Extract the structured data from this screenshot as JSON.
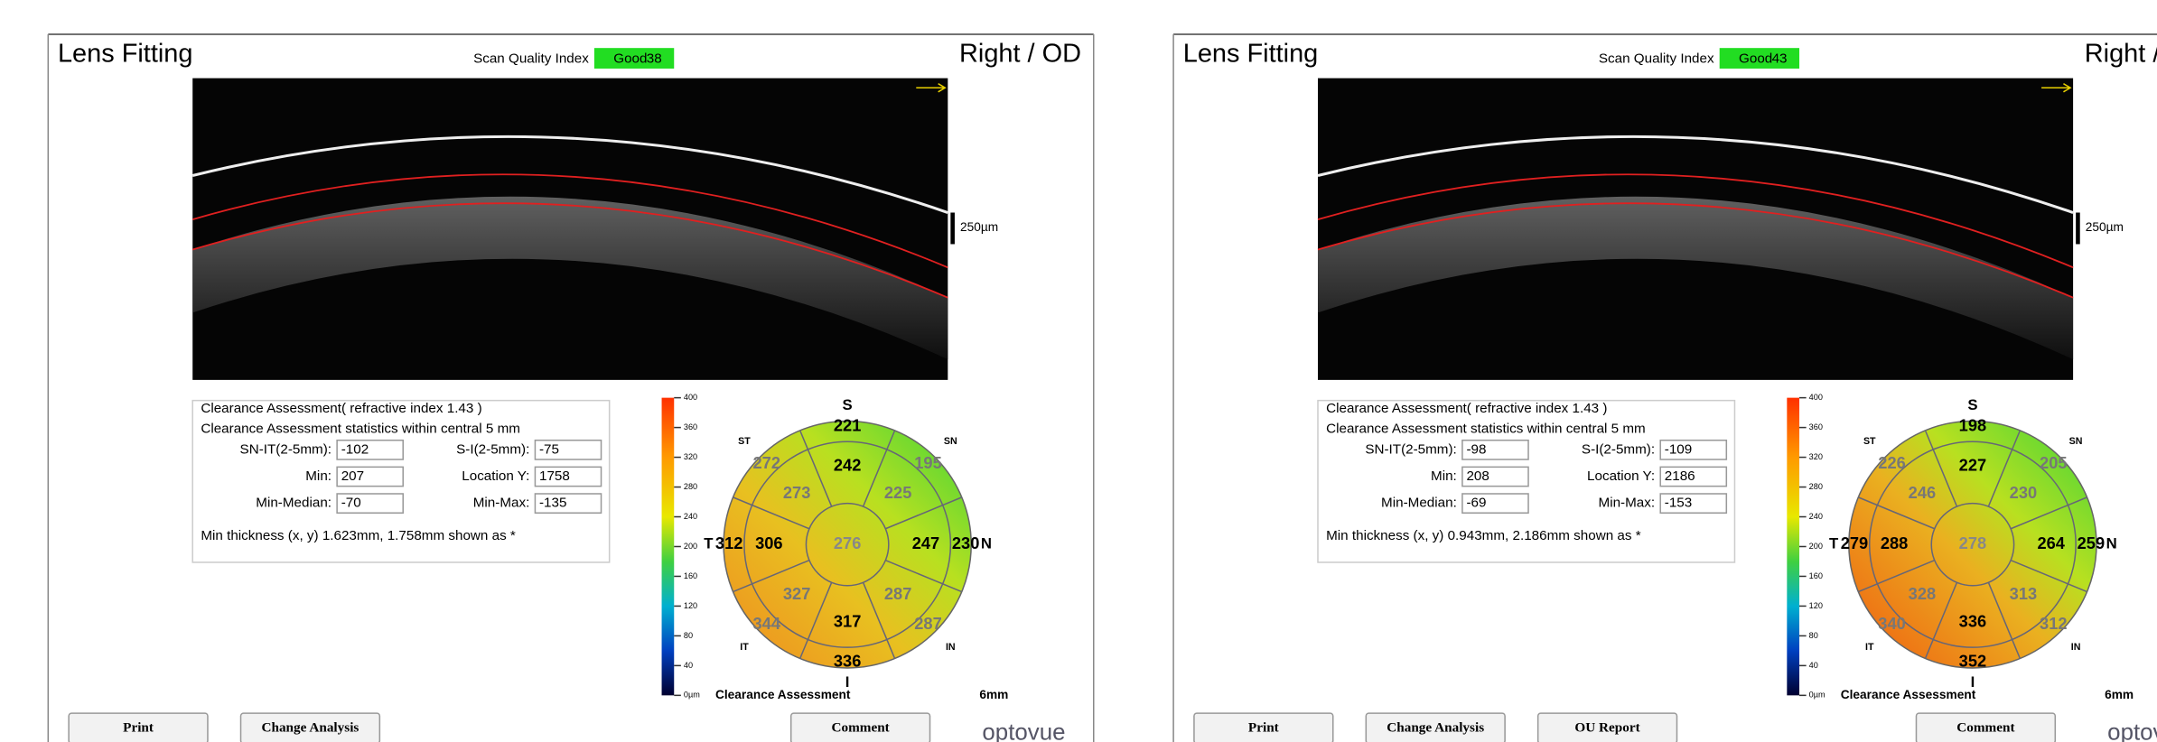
{
  "panels": [
    {
      "title": "Lens Fitting",
      "scan_quality_label": "Scan Quality Index",
      "scan_quality_status": "Good",
      "scan_quality_value": 38,
      "side": "Right / OD",
      "scale_label": "250µm",
      "clearance": {
        "heading": "Clearance Assessment( refractive index  1.43 )",
        "subheading": "Clearance Assessment statistics within central 5 mm",
        "fields": [
          {
            "label": "SN-IT(2-5mm):",
            "value": -102
          },
          {
            "label": "S-I(2-5mm):",
            "value": -75
          },
          {
            "label": "Min:",
            "value": 207
          },
          {
            "label": "Location Y:",
            "value": 1758
          },
          {
            "label": "Min-Median:",
            "value": -70
          },
          {
            "label": "Min-Max:",
            "value": -135
          }
        ],
        "note": "Min thickness (x, y) 1.623mm, 1.758mm shown as *"
      },
      "colorbar_labels": [
        400,
        360,
        320,
        280,
        240,
        200,
        160,
        120,
        80,
        40,
        "0µm"
      ],
      "map": {
        "directions": [
          "S",
          "SN",
          "N",
          "IN",
          "I",
          "IT",
          "T",
          "ST"
        ],
        "outer": [
          221,
          195,
          230,
          287,
          336,
          344,
          312,
          272
        ],
        "inner": [
          242,
          225,
          247,
          287,
          317,
          327,
          306,
          273
        ],
        "center": 276
      },
      "map_caption": "Clearance Assessment",
      "map_size": "6mm",
      "buttons": [
        "Print",
        "Change Analysis",
        "Comment"
      ],
      "logo": "optovue"
    },
    {
      "title": "Lens Fitting",
      "scan_quality_label": "Scan Quality Index",
      "scan_quality_status": "Good",
      "scan_quality_value": 43,
      "side": "Right / OD",
      "scale_label": "250µm",
      "clearance": {
        "heading": "Clearance Assessment( refractive index  1.43 )",
        "subheading": "Clearance Assessment statistics within central 5 mm",
        "fields": [
          {
            "label": "SN-IT(2-5mm):",
            "value": -98
          },
          {
            "label": "S-I(2-5mm):",
            "value": -109
          },
          {
            "label": "Min:",
            "value": 208
          },
          {
            "label": "Location Y:",
            "value": 2186
          },
          {
            "label": "Min-Median:",
            "value": -69
          },
          {
            "label": "Min-Max:",
            "value": -153
          }
        ],
        "note": "Min thickness (x, y) 0.943mm, 2.186mm shown as *"
      },
      "colorbar_labels": [
        400,
        360,
        320,
        280,
        240,
        200,
        160,
        120,
        80,
        40,
        "0µm"
      ],
      "map": {
        "directions": [
          "S",
          "SN",
          "N",
          "IN",
          "I",
          "IT",
          "T",
          "ST"
        ],
        "outer": [
          198,
          205,
          259,
          312,
          352,
          340,
          279,
          226
        ],
        "inner": [
          227,
          230,
          264,
          313,
          336,
          328,
          288,
          246
        ],
        "center": 278
      },
      "map_caption": "Clearance Assessment",
      "map_size": "6mm",
      "buttons": [
        "Print",
        "Change Analysis",
        "OU Report",
        "Comment"
      ],
      "logo": "optovue"
    }
  ]
}
